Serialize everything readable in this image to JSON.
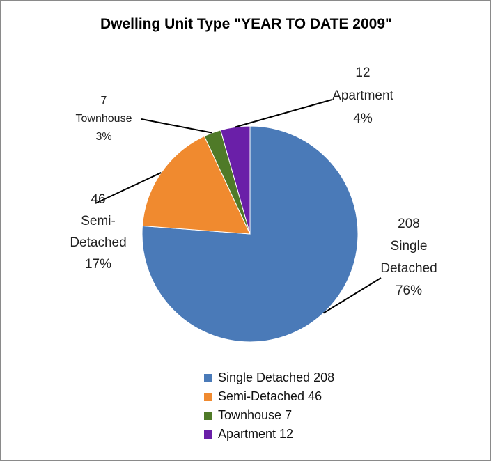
{
  "chart_data": {
    "type": "pie",
    "title": "Dwelling Unit Type \"YEAR TO DATE 2009\"",
    "series": [
      {
        "name": "Single Detached",
        "value": 208,
        "percent": "76%",
        "color": "#4a7ab8",
        "label_lines": [
          "208",
          "Single",
          "Detached",
          "76%"
        ],
        "legend": "Single Detached 208"
      },
      {
        "name": "Semi-Detached",
        "value": 46,
        "percent": "17%",
        "color": "#f08a2f",
        "label_lines": [
          "46",
          "Semi-",
          "Detached",
          "17%"
        ],
        "legend": "Semi-Detached 46"
      },
      {
        "name": "Townhouse",
        "value": 7,
        "percent": "3%",
        "color": "#4f7a28",
        "label_lines": [
          "7",
          "Townhouse",
          "3%"
        ],
        "legend": "Townhouse 7"
      },
      {
        "name": "Apartment",
        "value": 12,
        "percent": "4%",
        "color": "#6a1fa8",
        "label_lines": [
          "12",
          "Apartment",
          "4%"
        ],
        "legend": "Apartment 12"
      }
    ],
    "legend_position": "bottom"
  }
}
